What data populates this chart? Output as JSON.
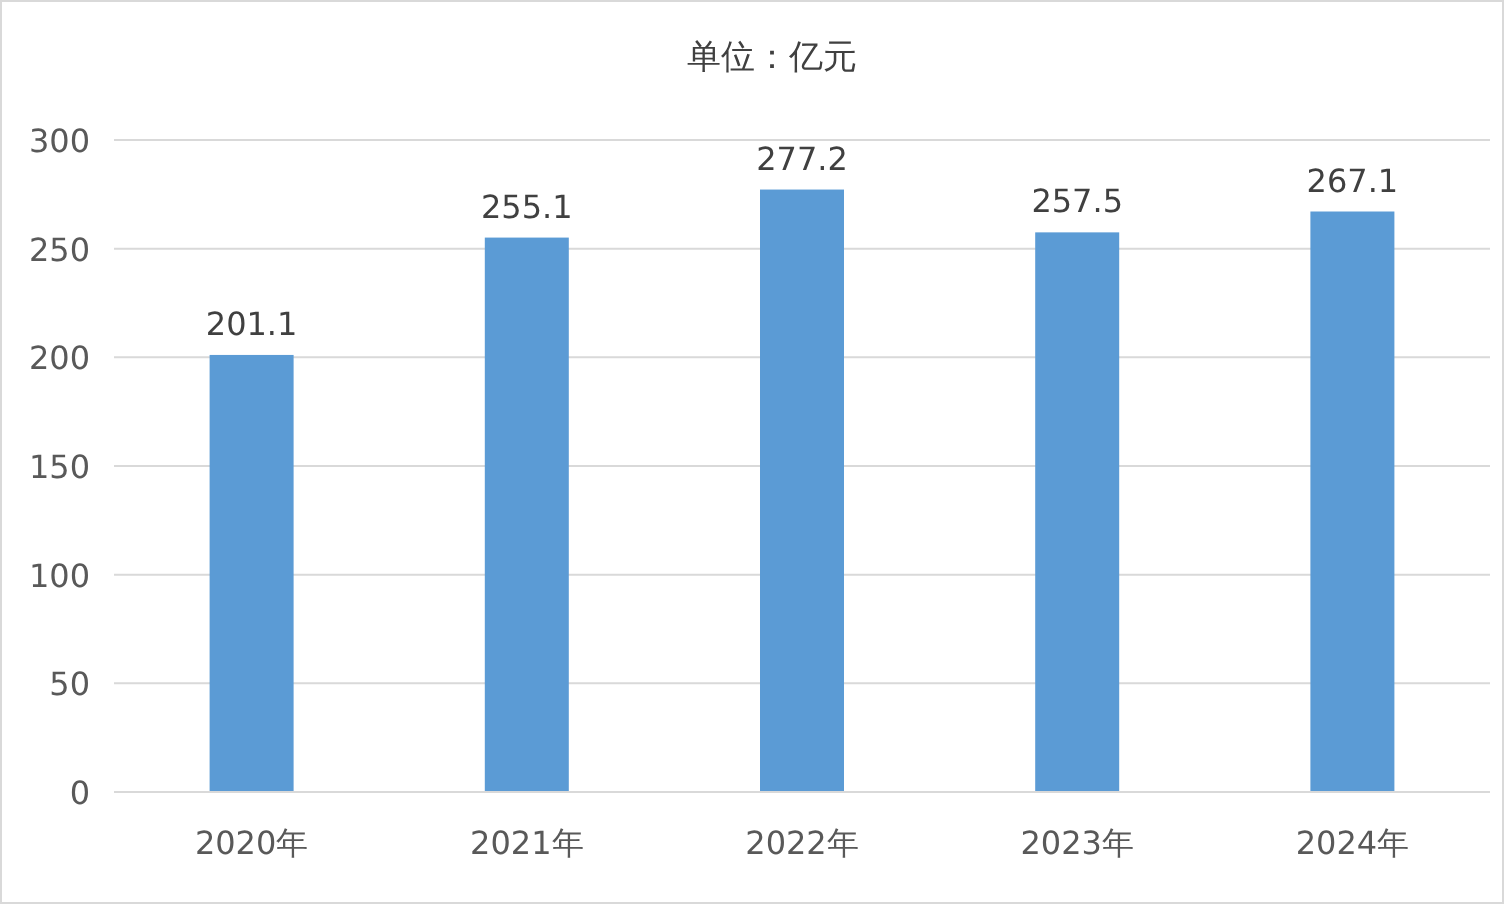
{
  "chart_data": {
    "type": "bar",
    "title": "单位：亿元",
    "categories": [
      "2020年",
      "2021年",
      "2022年",
      "2023年",
      "2024年"
    ],
    "values": [
      201.1,
      255.1,
      277.2,
      257.5,
      267.1
    ],
    "color": "#5b9bd5",
    "ylim": [
      0,
      300
    ],
    "yticks": [
      0,
      50,
      100,
      150,
      200,
      250,
      300
    ],
    "grid": "y",
    "data_labels": true
  }
}
